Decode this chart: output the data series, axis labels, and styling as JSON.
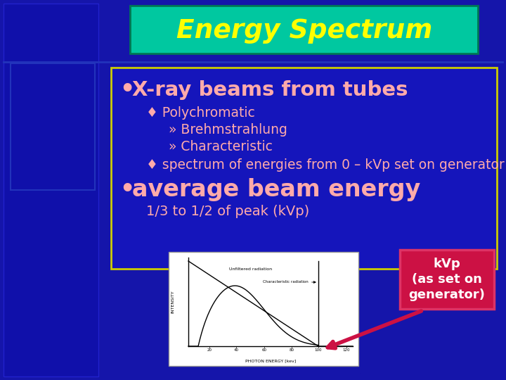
{
  "title": "Energy Spectrum",
  "title_bg": "#00C8A0",
  "title_color": "#FFFF00",
  "slide_bg": "#1515AA",
  "content_box_border": "#CCCC00",
  "content_box_bg": "#1515BB",
  "bullet1": "X-ray beams from tubes",
  "bullet1_color": "#FFAAAA",
  "sub1_label": "♦ Polychromatic",
  "sub1_color": "#FFAAAA",
  "sub2a": "» Brehmstrahlung",
  "sub2b": "» Characteristic",
  "sub2_color": "#FFAAAA",
  "sub3": "♦ spectrum of energies from 0 – kVp set on generator",
  "sub3_color": "#FFAAAA",
  "bullet2": "average beam energy",
  "bullet2_color": "#FFAAAA",
  "sub4": "1/3 to 1/2 of peak (kVp)",
  "sub4_color": "#FFAAAA",
  "annotation_text": "kVp\n(as set on\ngenerator)",
  "annotation_bg": "#CC1144",
  "annotation_border": "#CC4466",
  "annotation_text_color": "#FFFFFF",
  "figsize": [
    7.2,
    5.4
  ],
  "dpi": 100
}
